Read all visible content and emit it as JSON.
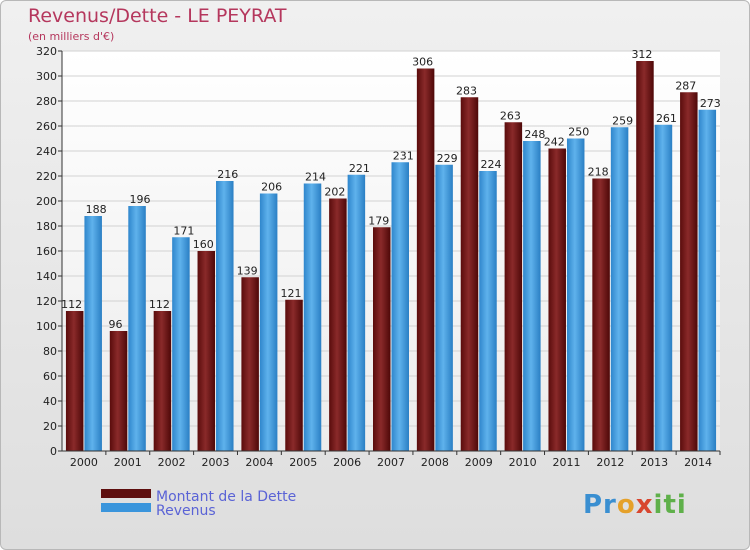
{
  "title": "Revenus/Dette - LE PEYRAT",
  "subtitle": "(en milliers d'€)",
  "logo": "Proxiti",
  "chart_data": {
    "type": "bar",
    "categories": [
      "2000",
      "2001",
      "2002",
      "2003",
      "2004",
      "2005",
      "2006",
      "2007",
      "2008",
      "2009",
      "2010",
      "2011",
      "2012",
      "2013",
      "2014"
    ],
    "series": [
      {
        "name": "Montant de la Dette",
        "color": "#7a1a1a",
        "values": [
          112,
          96,
          112,
          160,
          139,
          121,
          202,
          179,
          306,
          283,
          263,
          242,
          218,
          312,
          287
        ]
      },
      {
        "name": "Revenus",
        "color": "#3a95dc",
        "values": [
          188,
          196,
          171,
          216,
          206,
          214,
          221,
          231,
          229,
          224,
          248,
          250,
          259,
          261,
          273
        ]
      }
    ],
    "ylim": [
      0,
      320
    ],
    "yticks": [
      0,
      20,
      40,
      60,
      80,
      100,
      120,
      140,
      160,
      180,
      200,
      220,
      240,
      260,
      280,
      300,
      320
    ],
    "grid": true,
    "legend_position": "bottom-left"
  }
}
